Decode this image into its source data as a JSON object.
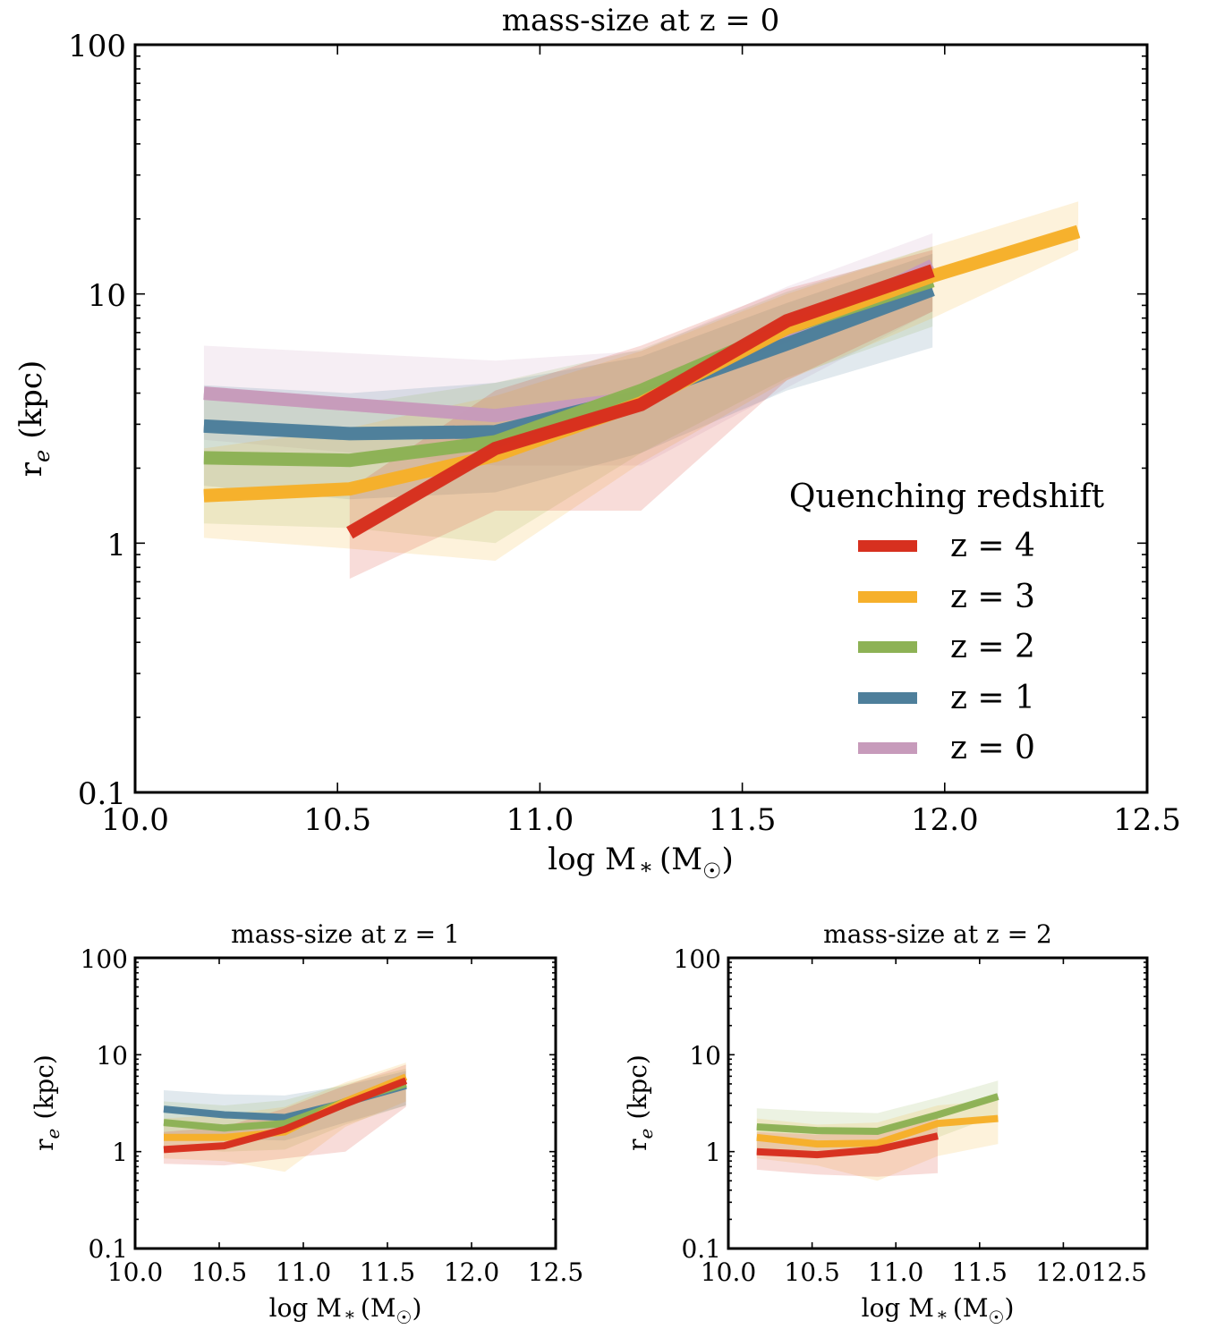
{
  "colors": {
    "z4": "#d7301f",
    "z3": "#f6b02b",
    "z2": "#8db255",
    "z1": "#4e7f9b",
    "z0": "#c79bbb"
  },
  "legend": {
    "title": "Quenching redshift",
    "placement": "lower-right",
    "entries": [
      "z = 4",
      "z = 3",
      "z = 2",
      "z = 1",
      "z = 0"
    ]
  },
  "chart_data": [
    {
      "type": "line",
      "title": "mass-size at z = 0",
      "xlabel": "log M* (M☉)",
      "ylabel": "re (kpc)",
      "xlim": [
        10.0,
        12.5
      ],
      "ylim": [
        0.1,
        100
      ],
      "yscale": "log",
      "xticks": [
        "10.0",
        "10.5",
        "11.0",
        "11.5",
        "12.0",
        "12.5"
      ],
      "yticks": [
        "0.1",
        "1",
        "10",
        "100"
      ],
      "grid": false,
      "series": [
        {
          "name": "z = 0",
          "color": "#c79bbb",
          "x": [
            10.17,
            10.89,
            11.25,
            11.61,
            11.97
          ],
          "y": [
            4.0,
            3.25,
            3.85,
            6.8,
            13.0
          ],
          "lo": [
            2.6,
            2.05,
            2.05,
            4.2,
            8.5
          ],
          "hi": [
            6.2,
            5.4,
            5.9,
            10.7,
            17.5
          ]
        },
        {
          "name": "z = 1",
          "color": "#4e7f9b",
          "x": [
            10.17,
            10.53,
            10.89,
            11.25,
            11.61,
            11.97
          ],
          "y": [
            2.95,
            2.75,
            2.8,
            3.9,
            6.3,
            10.4
          ],
          "lo": [
            1.7,
            1.5,
            1.6,
            2.3,
            4.1,
            6.1
          ],
          "hi": [
            4.3,
            4.0,
            4.4,
            5.6,
            9.2,
            14.5
          ]
        },
        {
          "name": "z = 2",
          "color": "#8db255",
          "x": [
            10.17,
            10.53,
            10.89,
            11.25,
            11.61,
            11.97
          ],
          "y": [
            2.2,
            2.15,
            2.55,
            4.1,
            7.3,
            11.3
          ],
          "lo": [
            1.2,
            1.15,
            1.0,
            2.3,
            4.6,
            7.4
          ],
          "hi": [
            3.8,
            3.6,
            4.4,
            6.0,
            10.2,
            15.5
          ]
        },
        {
          "name": "z = 3",
          "color": "#f6b02b",
          "x": [
            10.17,
            10.53,
            10.89,
            11.25,
            11.61,
            11.97,
            12.33
          ],
          "y": [
            1.55,
            1.65,
            2.25,
            3.65,
            7.3,
            11.8,
            17.8
          ],
          "lo": [
            1.05,
            0.95,
            0.85,
            2.1,
            4.5,
            8.0,
            15.0
          ],
          "hi": [
            2.4,
            2.9,
            3.9,
            5.9,
            10.0,
            15.5,
            23.5
          ]
        },
        {
          "name": "z = 4",
          "color": "#d7301f",
          "x": [
            10.53,
            10.89,
            11.25,
            11.61,
            11.97
          ],
          "y": [
            1.1,
            2.4,
            3.6,
            7.8,
            12.4
          ],
          "lo": [
            0.72,
            1.35,
            1.35,
            4.5,
            8.5
          ],
          "hi": [
            1.65,
            4.1,
            6.2,
            10.5,
            15.0
          ]
        }
      ]
    },
    {
      "type": "line",
      "title": "mass-size at z = 1",
      "xlabel": "log M* (M☉)",
      "ylabel": "re (kpc)",
      "xlim": [
        10.0,
        12.5
      ],
      "ylim": [
        0.1,
        100
      ],
      "yscale": "log",
      "xticks": [
        "10.0",
        "10.5",
        "11.0",
        "11.5",
        "12.0",
        "12.5"
      ],
      "yticks": [
        "0.1",
        "1",
        "10",
        "100"
      ],
      "grid": false,
      "series": [
        {
          "name": "z = 1",
          "color": "#4e7f9b",
          "x": [
            10.17,
            10.53,
            10.89,
            11.25,
            11.61
          ],
          "y": [
            2.75,
            2.4,
            2.25,
            3.2,
            4.8
          ],
          "lo": [
            1.5,
            1.35,
            1.3,
            2.0,
            3.0
          ],
          "hi": [
            4.3,
            3.9,
            3.8,
            4.8,
            6.8
          ]
        },
        {
          "name": "z = 2",
          "color": "#8db255",
          "x": [
            10.17,
            10.53,
            10.89,
            11.25,
            11.61
          ],
          "y": [
            2.0,
            1.75,
            1.95,
            3.3,
            5.0
          ],
          "lo": [
            1.1,
            1.0,
            1.05,
            1.9,
            3.0
          ],
          "hi": [
            3.3,
            3.0,
            3.4,
            5.0,
            7.2
          ]
        },
        {
          "name": "z = 3",
          "color": "#f6b02b",
          "x": [
            10.17,
            10.53,
            10.89,
            11.25,
            11.61
          ],
          "y": [
            1.4,
            1.4,
            1.6,
            3.3,
            5.9
          ],
          "lo": [
            0.85,
            0.8,
            0.62,
            1.8,
            3.3
          ],
          "hi": [
            2.2,
            2.4,
            2.9,
            5.2,
            8.3
          ]
        },
        {
          "name": "z = 4",
          "color": "#d7301f",
          "x": [
            10.17,
            10.53,
            10.89,
            11.25,
            11.61
          ],
          "y": [
            1.05,
            1.15,
            1.7,
            3.1,
            5.4
          ],
          "lo": [
            0.75,
            0.72,
            0.85,
            1.0,
            2.9
          ],
          "hi": [
            1.6,
            1.8,
            2.8,
            4.8,
            7.9
          ]
        }
      ]
    },
    {
      "type": "line",
      "title": "mass-size at z = 2",
      "xlabel": "log M* (M☉)",
      "ylabel": "re (kpc)",
      "xlim": [
        10.0,
        12.5
      ],
      "ylim": [
        0.1,
        100
      ],
      "yscale": "log",
      "xticks": [
        "10.0",
        "10.5",
        "11.0",
        "11.5",
        "12.0",
        "12.5"
      ],
      "yticks": [
        "0.1",
        "1",
        "10",
        "100"
      ],
      "grid": false,
      "series": [
        {
          "name": "z = 2",
          "color": "#8db255",
          "x": [
            10.17,
            10.53,
            10.89,
            11.25,
            11.61
          ],
          "y": [
            1.8,
            1.65,
            1.62,
            2.4,
            3.7
          ],
          "lo": [
            1.0,
            1.0,
            0.95,
            1.4,
            2.4
          ],
          "hi": [
            2.8,
            2.6,
            2.5,
            3.6,
            5.4
          ]
        },
        {
          "name": "z = 3",
          "color": "#f6b02b",
          "x": [
            10.17,
            10.53,
            10.89,
            11.25,
            11.61
          ],
          "y": [
            1.4,
            1.2,
            1.22,
            1.95,
            2.2
          ],
          "lo": [
            0.85,
            0.72,
            0.5,
            0.9,
            1.2
          ],
          "hi": [
            2.2,
            1.9,
            2.0,
            3.0,
            3.4
          ]
        },
        {
          "name": "z = 4",
          "color": "#d7301f",
          "x": [
            10.17,
            10.53,
            10.89,
            11.25
          ],
          "y": [
            1.0,
            0.93,
            1.05,
            1.45
          ],
          "lo": [
            0.65,
            0.58,
            0.55,
            0.6
          ],
          "hi": [
            1.6,
            1.5,
            1.75,
            2.4
          ]
        }
      ]
    }
  ]
}
